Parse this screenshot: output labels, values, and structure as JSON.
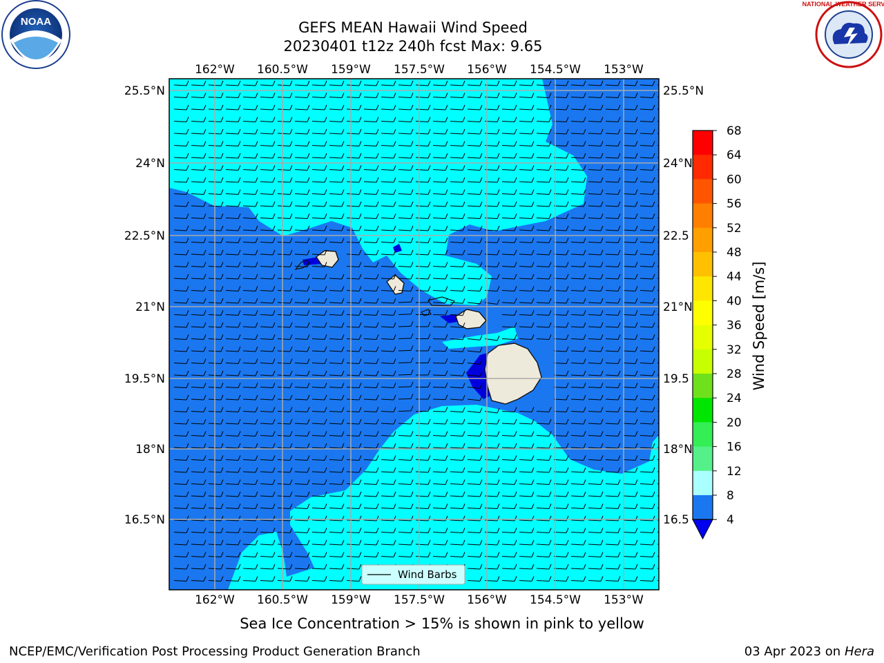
{
  "header": {
    "title_line1": "GEFS MEAN Hawaii Wind Speed",
    "title_line2": "20230401 t12z 240h fcst   Max: 9.65"
  },
  "map": {
    "lon_labels": [
      "162°W",
      "160.5°W",
      "159°W",
      "157.5°W",
      "156°W",
      "154.5°W",
      "153°W"
    ],
    "lat_labels": [
      "25.5°N",
      "24°N",
      "22.5°N",
      "21°N",
      "19.5°N",
      "18°N",
      "16.5°N"
    ],
    "right_lat_labels": [
      "25.5°N",
      "24°N",
      "22.5",
      "21°N",
      "19.5",
      "18°N",
      "16.5"
    ],
    "legend_label": "Wind Barbs",
    "colors": {
      "low": "#1a77f0",
      "mid": "#00ffff",
      "calm": "#0000dd",
      "land": "#eeeadb",
      "grid": "#aaaaaa"
    }
  },
  "colorbar": {
    "label": "Wind Speed [m/s]",
    "ticks": [
      "68",
      "64",
      "60",
      "56",
      "52",
      "48",
      "44",
      "40",
      "36",
      "32",
      "28",
      "24",
      "20",
      "16",
      "12",
      "8",
      "4"
    ],
    "colors": [
      "#ff0000",
      "#ff2a00",
      "#ff5500",
      "#ff7f00",
      "#ff9f00",
      "#ffc000",
      "#ffe600",
      "#ffff00",
      "#e6ff00",
      "#c8ff00",
      "#6fe01c",
      "#00e600",
      "#33ee55",
      "#55f08a",
      "#aaffff",
      "#44ffff",
      "#00ffff",
      "#1a77f0",
      "#0000ee"
    ]
  },
  "caption": "Sea Ice Concentration > 15% is shown in pink to yellow",
  "footer": {
    "left": "NCEP/EMC/Verification Post Processing Product Generation Branch",
    "date": "03 Apr 2023 on",
    "host": "Hera"
  },
  "logos": {
    "noaa": "NOAA",
    "nws": "NATIONAL WEATHER SERVICE"
  }
}
